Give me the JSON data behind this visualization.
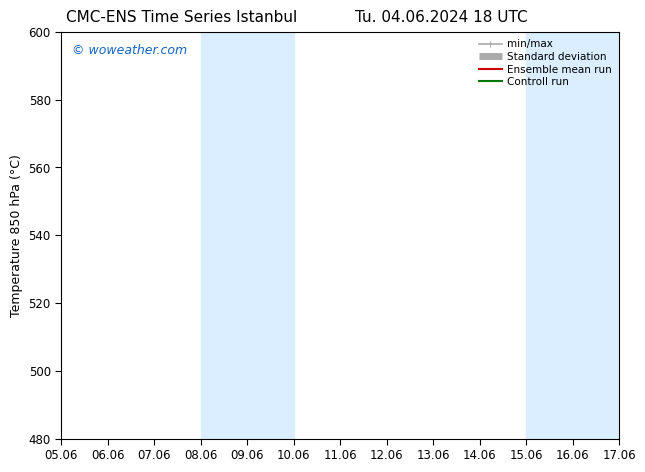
{
  "title_left": "CMC-ENS Time Series Istanbul",
  "title_right": "Tu. 04.06.2024 18 UTC",
  "ylabel": "Temperature 850 hPa (°C)",
  "xlabel_ticks": [
    "05.06",
    "06.06",
    "07.06",
    "08.06",
    "09.06",
    "10.06",
    "11.06",
    "12.06",
    "13.06",
    "14.06",
    "15.06",
    "16.06",
    "17.06"
  ],
  "ylim": [
    480,
    600
  ],
  "yticks": [
    480,
    500,
    520,
    540,
    560,
    580,
    600
  ],
  "shaded_regions": [
    {
      "xstart": "08.06",
      "xend": "10.06",
      "color": "#daeeff"
    },
    {
      "xstart": "15.06",
      "xend": "17.06",
      "color": "#daeeff"
    }
  ],
  "watermark": "© woweather.com",
  "watermark_color": "#1565C0",
  "legend_entries": [
    {
      "label": "min/max",
      "color": "#aaaaaa",
      "lw": 1.2
    },
    {
      "label": "Standard deviation",
      "color": "#aaaaaa",
      "lw": 5
    },
    {
      "label": "Ensemble mean run",
      "color": "#cc0000",
      "lw": 1.5
    },
    {
      "label": "Controll run",
      "color": "#007700",
      "lw": 1.5
    }
  ],
  "bg_color": "#ffffff",
  "title_fontsize": 11,
  "tick_fontsize": 8.5,
  "ylabel_fontsize": 9
}
